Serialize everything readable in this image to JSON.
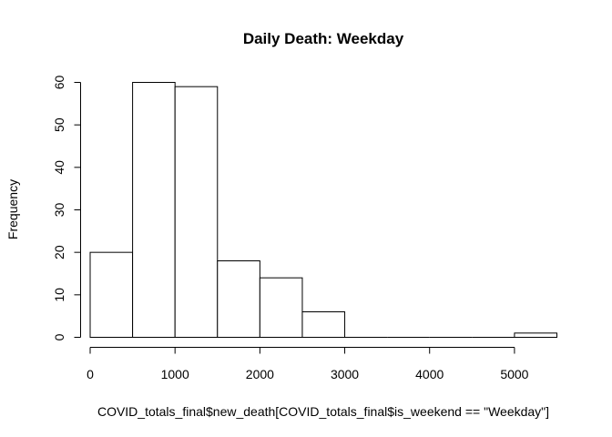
{
  "chart_data": {
    "type": "bar",
    "subtype": "histogram",
    "title": "Daily Death: Weekday",
    "xlabel": "COVID_totals_final$new_death[COVID_totals_final$is_weekend == \"Weekday\"]",
    "ylabel": "Frequency",
    "bins": [
      {
        "x0": 0,
        "x1": 500,
        "count": 20
      },
      {
        "x0": 500,
        "x1": 1000,
        "count": 60
      },
      {
        "x0": 1000,
        "x1": 1500,
        "count": 59
      },
      {
        "x0": 1500,
        "x1": 2000,
        "count": 18
      },
      {
        "x0": 2000,
        "x1": 2500,
        "count": 14
      },
      {
        "x0": 2500,
        "x1": 3000,
        "count": 6
      },
      {
        "x0": 3000,
        "x1": 3500,
        "count": 0
      },
      {
        "x0": 3500,
        "x1": 4000,
        "count": 0
      },
      {
        "x0": 4000,
        "x1": 4500,
        "count": 0
      },
      {
        "x0": 4500,
        "x1": 5000,
        "count": 0
      },
      {
        "x0": 5000,
        "x1": 5500,
        "count": 1
      }
    ],
    "xlim": [
      0,
      5500
    ],
    "ylim": [
      0,
      60
    ],
    "xticks": [
      0,
      1000,
      2000,
      3000,
      4000,
      5000
    ],
    "yticks": [
      0,
      10,
      20,
      30,
      40,
      50,
      60
    ],
    "grid": false,
    "legend": "none",
    "bar_fill": "#ffffff",
    "bar_stroke": "#000000"
  }
}
